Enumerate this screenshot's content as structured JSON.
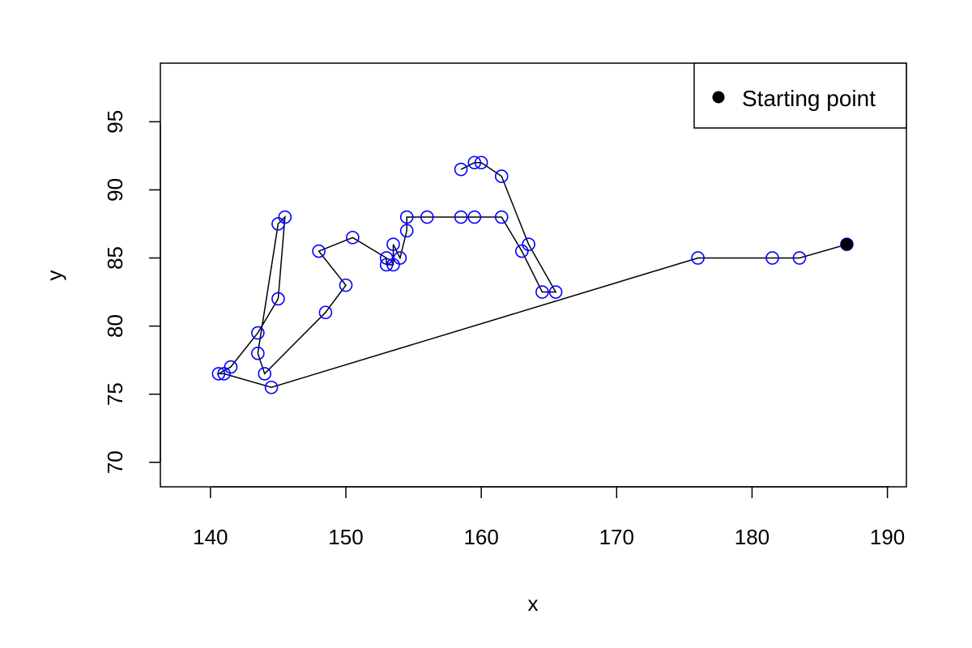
{
  "chart_data": {
    "type": "scatter",
    "title": "",
    "xlabel": "x",
    "ylabel": "y",
    "xlim": [
      136.3,
      191.4
    ],
    "ylim": [
      68.2,
      99.3
    ],
    "xticks": [
      140,
      150,
      160,
      170,
      180,
      190
    ],
    "yticks": [
      70,
      75,
      80,
      85,
      90,
      95
    ],
    "grid": false,
    "legend": {
      "placement": "top-right",
      "entries": [
        {
          "label": "Starting point",
          "marker": "filled-circle",
          "color": "#000000"
        }
      ]
    },
    "colors": {
      "point_stroke": "#0000ff",
      "path_line": "#000000",
      "start_marker": "#000000"
    },
    "series": [
      {
        "marker": "open-circle",
        "connected": true,
        "x": [
          187,
          183.5,
          181.5,
          176,
          144.5,
          141,
          140.6,
          141.5,
          143.5,
          145,
          145.5,
          145,
          143.5,
          144,
          148.5,
          150,
          148,
          150.5,
          153,
          153,
          153.5,
          153.5,
          154,
          154.5,
          154.5,
          156,
          158.5,
          159.5,
          161.5,
          163,
          164.5,
          165.5,
          163.5,
          161.5,
          160,
          159.5,
          158.5
        ],
        "y": [
          86,
          85,
          85,
          85,
          75.5,
          76.5,
          76.5,
          77,
          79.5,
          82,
          88,
          87.5,
          78,
          76.5,
          81,
          83,
          85.5,
          86.5,
          85,
          84.5,
          84.5,
          86,
          85,
          87,
          88,
          88,
          88,
          88,
          88,
          85.5,
          82.5,
          82.5,
          86,
          91,
          92,
          92,
          91.5
        ]
      }
    ],
    "start_point": {
      "x": 187,
      "y": 86
    }
  }
}
